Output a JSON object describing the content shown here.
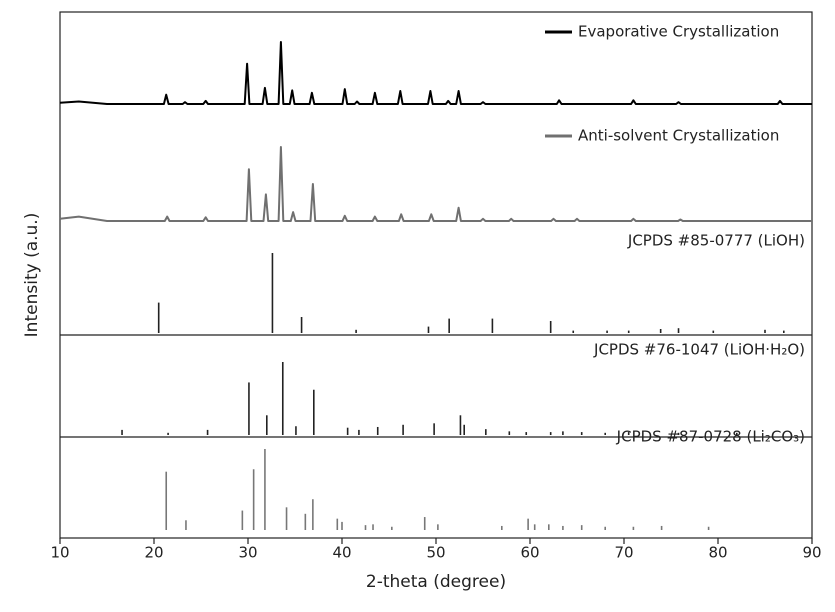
{
  "chart_data": [
    {
      "type": "line",
      "xlabel": "2-theta (degree)",
      "ylabel": "Intensity (a.u.)",
      "xlim": [
        10,
        90
      ],
      "xticks": [
        10,
        20,
        30,
        40,
        50,
        60,
        70,
        80,
        90
      ],
      "ylim": [
        0,
        100
      ],
      "series": [
        {
          "name": "Evaporative Crystallization",
          "color": "#000000",
          "x": [
            10,
            12,
            15,
            21.05,
            21.3,
            21.55,
            23.05,
            23.3,
            23.55,
            25.25,
            25.5,
            25.75,
            29.65,
            29.9,
            30.15,
            31.55,
            31.8,
            32.05,
            33.25,
            33.5,
            33.75,
            34.45,
            34.7,
            34.95,
            36.55,
            36.8,
            37.05,
            40.05,
            40.3,
            40.55,
            41.35,
            41.6,
            41.85,
            43.25,
            43.5,
            43.75,
            45.95,
            46.2,
            46.45,
            49.15,
            49.4,
            49.65,
            51.05,
            51.3,
            51.55,
            52.15,
            52.4,
            52.65,
            54.75,
            55,
            55.25,
            62.85,
            63.1,
            63.35,
            70.75,
            71,
            71.25,
            75.55,
            75.8,
            76.05,
            86.35,
            86.6,
            86.85,
            90
          ],
          "values": [
            2,
            4,
            0,
            0,
            15,
            0,
            0,
            3,
            0,
            0,
            5,
            0,
            0,
            65,
            0,
            0,
            26,
            0,
            0,
            100,
            0,
            0,
            22,
            0,
            0,
            18,
            0,
            0,
            24,
            0,
            0,
            4,
            0,
            0,
            18,
            0,
            0,
            21,
            0,
            0,
            21,
            0,
            0,
            5,
            0,
            0,
            21,
            0,
            0,
            3,
            0,
            0,
            6,
            0,
            0,
            6,
            0,
            0,
            3,
            0,
            0,
            5,
            0,
            0
          ]
        },
        {
          "name": "Anti-solvent Crystallization",
          "color": "#707070",
          "x": [
            10,
            12,
            15,
            21.15,
            21.4,
            21.65,
            25.25,
            25.5,
            25.75,
            29.85,
            30.1,
            30.35,
            31.65,
            31.9,
            32.15,
            33.25,
            33.5,
            33.75,
            34.55,
            34.8,
            35.05,
            36.65,
            36.9,
            37.15,
            40.05,
            40.3,
            40.55,
            43.25,
            43.5,
            43.75,
            46.05,
            46.3,
            46.55,
            49.25,
            49.5,
            49.75,
            52.15,
            52.4,
            52.65,
            54.75,
            55,
            55.25,
            57.75,
            58,
            58.25,
            62.25,
            62.5,
            62.75,
            64.75,
            65,
            65.25,
            70.75,
            71,
            71.25,
            75.75,
            76,
            76.25,
            90
          ],
          "values": [
            3,
            6,
            0,
            0,
            6,
            0,
            0,
            5,
            0,
            0,
            70,
            0,
            0,
            36,
            0,
            0,
            100,
            0,
            0,
            12,
            0,
            0,
            50,
            0,
            0,
            7,
            0,
            0,
            6,
            0,
            0,
            9,
            0,
            0,
            9,
            0,
            0,
            18,
            0,
            0,
            3,
            0,
            0,
            3,
            0,
            0,
            3,
            0,
            0,
            3,
            0,
            0,
            3,
            0,
            0,
            2,
            0,
            0
          ]
        }
      ]
    },
    {
      "type": "stick",
      "title": "JCPDS #85-0777 (LiOH)",
      "color": "#222222",
      "ylim": [
        0,
        100
      ],
      "x": [
        20.5,
        32.6,
        35.7,
        41.5,
        49.2,
        51.4,
        56.0,
        62.2,
        64.6,
        68.2,
        70.5,
        73.9,
        75.8,
        79.5,
        85,
        87
      ],
      "values": [
        38,
        100,
        20,
        4,
        8,
        18,
        18,
        15,
        3,
        3,
        3,
        5,
        6,
        3,
        4,
        3
      ]
    },
    {
      "type": "stick",
      "title": "JCPDS #76-1047 (LiOH·H₂O)",
      "color": "#222222",
      "ylim": [
        0,
        100
      ],
      "x": [
        16.6,
        21.5,
        25.7,
        30.1,
        32.0,
        33.7,
        35.1,
        37.0,
        40.6,
        41.8,
        43.8,
        46.5,
        49.8,
        52.6,
        53.0,
        55.3,
        57.8,
        59.6,
        62.2,
        63.5,
        65.5,
        68,
        70.5,
        75.8,
        82
      ],
      "values": [
        7,
        3,
        7,
        72,
        27,
        100,
        12,
        62,
        10,
        7,
        11,
        14,
        16,
        27,
        14,
        8,
        5,
        4,
        4,
        5,
        4,
        3,
        4,
        3,
        3
      ]
    },
    {
      "type": "stick",
      "title": "JCPDS #87-0728 (Li₂CO₃)",
      "color": "#777777",
      "ylim": [
        0,
        100
      ],
      "x": [
        21.3,
        23.4,
        29.4,
        30.6,
        31.8,
        34.1,
        36.1,
        36.9,
        39.5,
        40.0,
        42.5,
        43.3,
        45.3,
        48.8,
        50.2,
        57,
        59.8,
        60.5,
        62,
        63.5,
        65.5,
        68,
        71,
        74,
        79
      ],
      "values": [
        72,
        12,
        24,
        75,
        100,
        28,
        20,
        38,
        14,
        10,
        6,
        7,
        4,
        16,
        7,
        5,
        14,
        7,
        7,
        5,
        6,
        4,
        4,
        5,
        4
      ]
    }
  ]
}
